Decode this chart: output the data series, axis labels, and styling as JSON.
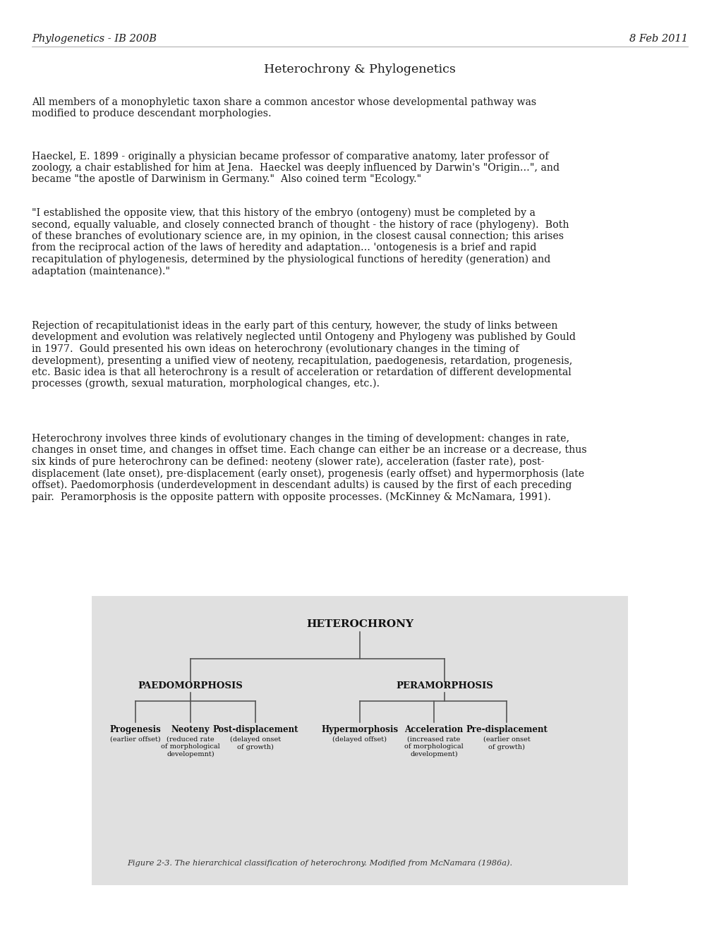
{
  "background_color": "#ffffff",
  "header_left": "Phylogenetics - IB 200B",
  "header_right": "8 Feb 2011",
  "title": "Heterochrony & Phylogenetics",
  "header_fontsize": 10.5,
  "title_fontsize": 12.5,
  "body_fontsize": 10.2,
  "paragraphs": [
    "All members of a monophyletic taxon share a common ancestor whose developmental pathway was\nmodified to produce descendant morphologies.",
    "Haeckel, E. 1899 - originally a physician became professor of comparative anatomy, later professor of\nzoology, a chair established for him at Jena.  Haeckel was deeply influenced by Darwin's \"Origin…\", and\nbecame \"the apostle of Darwinism in Germany.\"  Also coined term \"Ecology.\"",
    "\"I established the opposite view, that this history of the embryo (ontogeny) must be completed by a\nsecond, equally valuable, and closely connected branch of thought - the history of race (phylogeny).  Both\nof these branches of evolutionary science are, in my opinion, in the closest causal connection; this arises\nfrom the reciprocal action of the laws of heredity and adaptation... 'ontogenesis is a brief and rapid\nrecapitulation of phylogenesis, determined by the physiological functions of heredity (generation) and\nadaptation (maintenance).\"",
    "Rejection of recapitulationist ideas in the early part of this century, however, the study of links between\ndevelopment and evolution was relatively neglected until Ontogeny and Phylogeny was published by Gould\nin 1977.  Gould presented his own ideas on heterochrony (evolutionary changes in the timing of\ndevelopment), presenting a unified view of neoteny, recapitulation, paedogenesis, retardation, progenesis,\netc. Basic idea is that all heterochrony is a result of acceleration or retardation of different developmental\nprocesses (growth, sexual maturation, morphological changes, etc.).",
    "Heterochrony involves three kinds of evolutionary changes in the timing of development: changes in rate,\nchanges in onset time, and changes in offset time. Each change can either be an increase or a decrease, thus\nsix kinds of pure heterochrony can be defined: neoteny (slower rate), acceleration (faster rate), post-\ndisplacement (late onset), pre-displacement (early onset), progenesis (early offset) and hypermorphosis (late\noffset). Paedomorphosis (underdevelopment in descendant adults) is caused by the first of each preceding\npair.  Peramorphosis is the opposite pattern with opposite processes. (McKinney & McNamara, 1991)."
  ],
  "diagram_title": "HETEROCHRONY",
  "diagram_left_node": "PAEDOMORPHOSIS",
  "diagram_right_node": "PERAMORPHOSIS",
  "diagram_left_children": [
    "Progenesis",
    "Neoteny",
    "Post-displacement"
  ],
  "diagram_left_subtexts": [
    "(earlier offset)",
    "(reduced rate\nof morphological\ndevelopemnt)",
    "(delayed onset\nof growth)"
  ],
  "diagram_right_children": [
    "Hypermorphosis",
    "Acceleration",
    "Pre-displacement"
  ],
  "diagram_right_subtexts": [
    "(delayed offset)",
    "(increased rate\nof morphological\ndevelopment)",
    "(earlier onset\nof growth)"
  ],
  "figure_caption": "Figure 2-3. The hierarchical classification of heterochrony. Modified from McNamara (1986a).",
  "text_color": "#1a1a1a",
  "line_color": "#555555",
  "diagram_bg": "#e0e0e0"
}
